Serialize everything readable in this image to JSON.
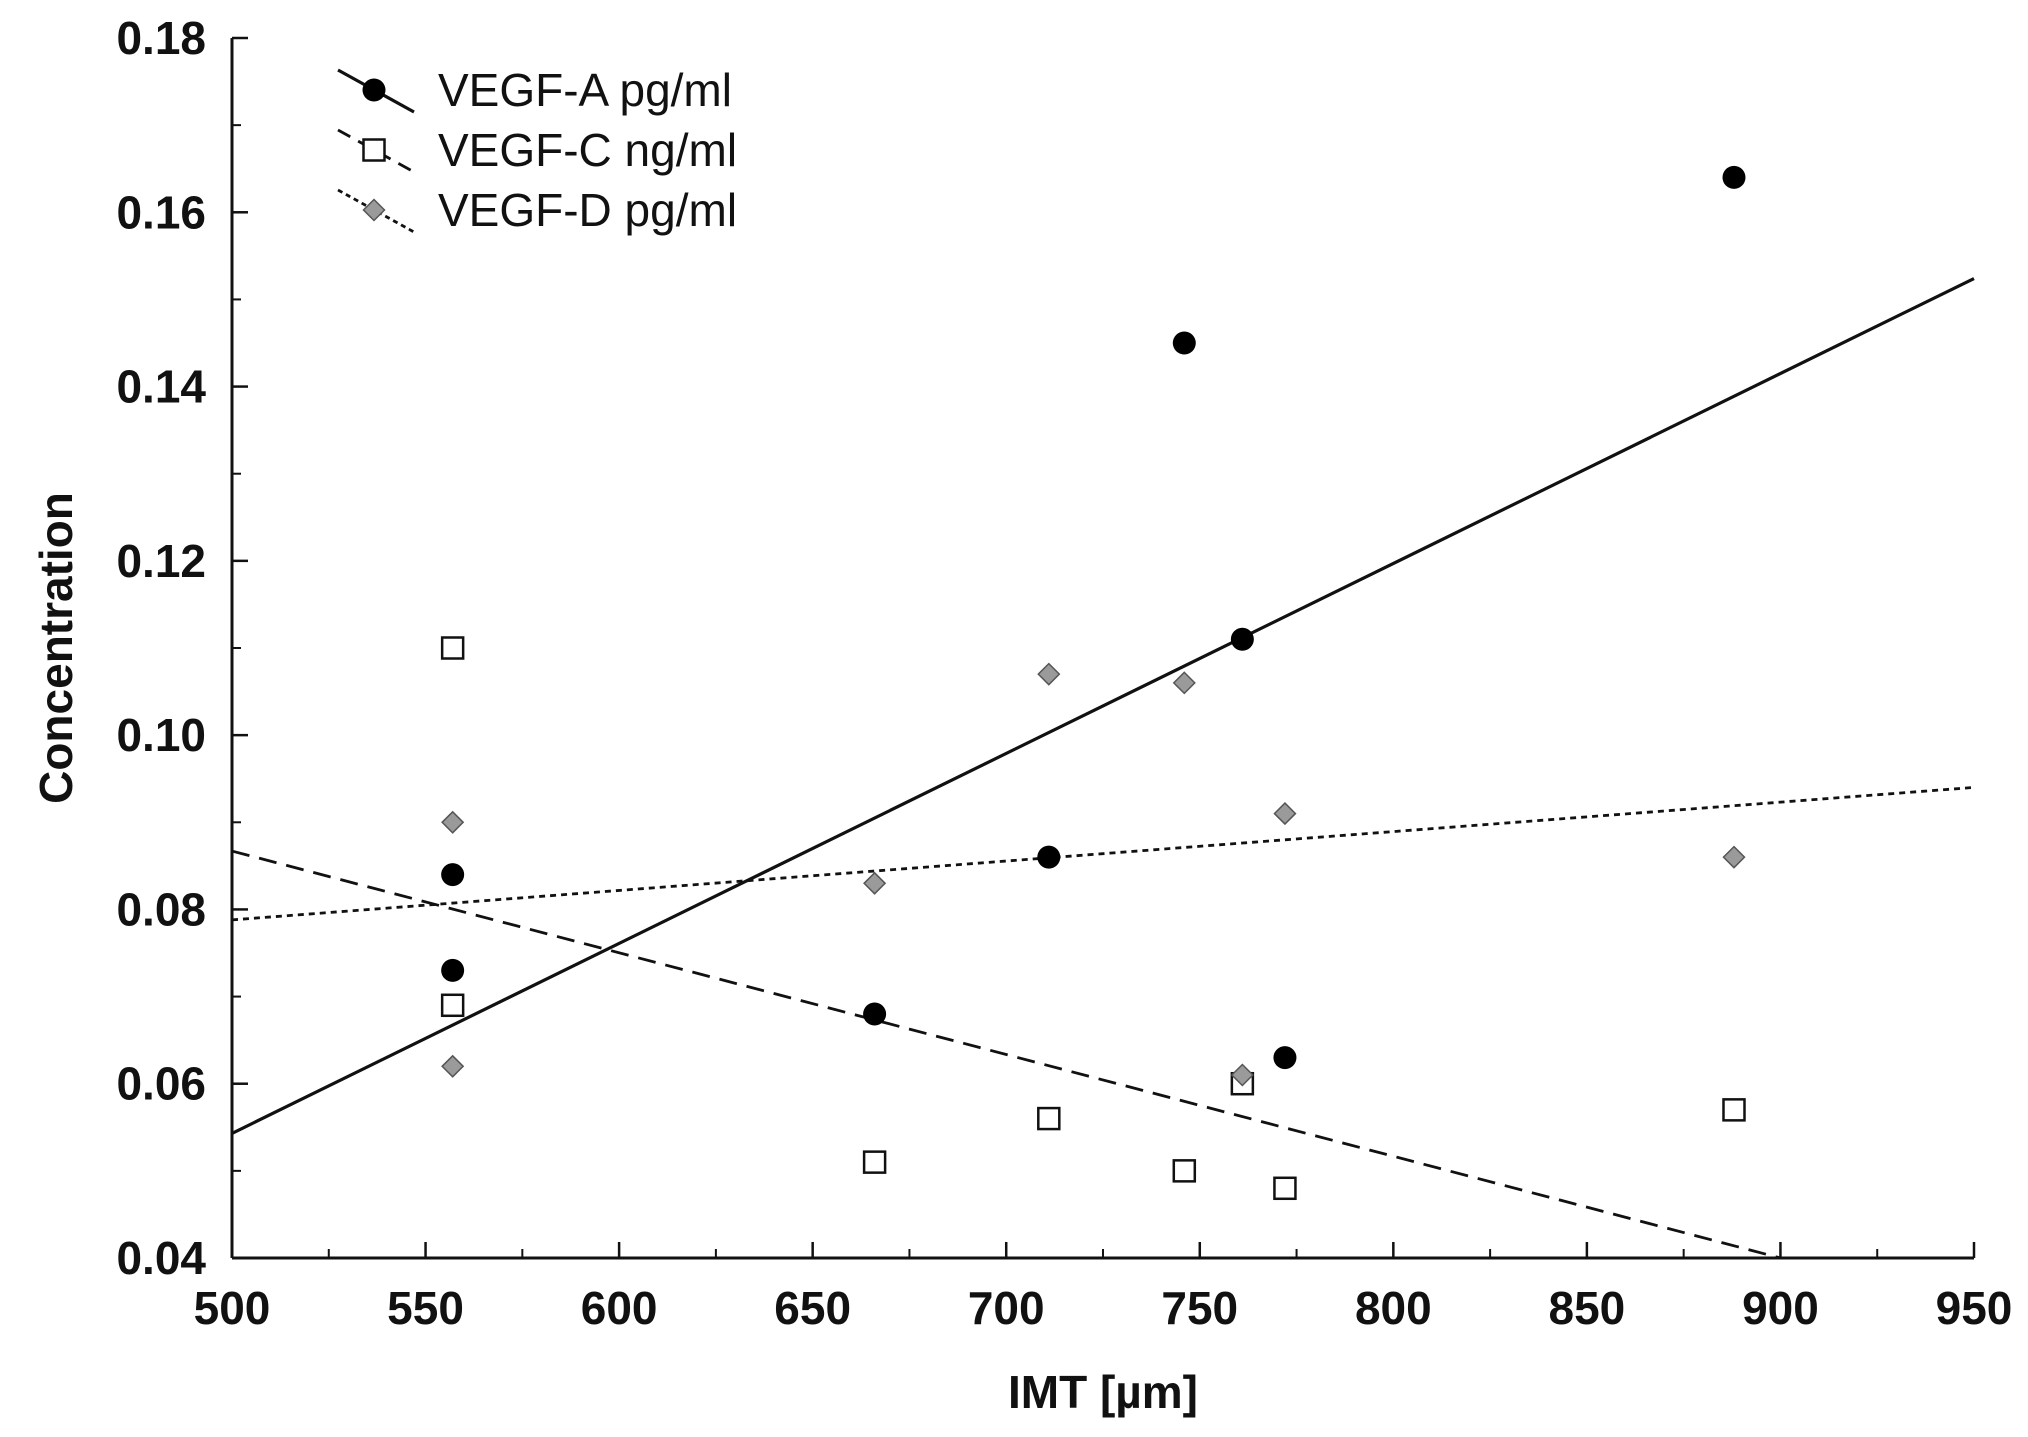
{
  "chart_data": {
    "type": "scatter",
    "title": "",
    "xlabel": "IMT [µm]",
    "ylabel": "Concentration",
    "xlim": [
      500,
      950
    ],
    "ylim": [
      0.04,
      0.18
    ],
    "xticks": [
      500,
      550,
      600,
      650,
      700,
      750,
      800,
      850,
      900,
      950
    ],
    "yticks": [
      0.04,
      0.06,
      0.08,
      0.1,
      0.12,
      0.14,
      0.16,
      0.18
    ],
    "xtick_labels": [
      "500",
      "550",
      "600",
      "650",
      "700",
      "750",
      "800",
      "850",
      "900",
      "950"
    ],
    "ytick_labels": [
      "0.04",
      "0.06",
      "0.08",
      "0.10",
      "0.12",
      "0.14",
      "0.16",
      "0.18"
    ],
    "grid": false,
    "legend_position": "top-left",
    "series": [
      {
        "name": "VEGF-A pg/ml",
        "marker": "filled-circle",
        "line_style": "solid",
        "color": "#000000",
        "x": [
          557,
          557,
          666,
          711,
          746,
          761,
          772,
          888
        ],
        "y": [
          0.084,
          0.073,
          0.068,
          0.086,
          0.145,
          0.111,
          0.063,
          0.164
        ],
        "trend": {
          "x": [
            500,
            950
          ],
          "y": [
            0.0543,
            0.1524
          ]
        }
      },
      {
        "name": "VEGF-C ng/ml",
        "marker": "open-square",
        "line_style": "dashed",
        "color": "#000000",
        "x": [
          557,
          557,
          666,
          711,
          746,
          761,
          772,
          888
        ],
        "y": [
          0.11,
          0.069,
          0.051,
          0.056,
          0.05,
          0.06,
          0.048,
          0.057
        ],
        "trend": {
          "x": [
            500,
            900
          ],
          "y": [
            0.0867,
            0.04
          ]
        }
      },
      {
        "name": "VEGF-D pg/ml",
        "marker": "grey-diamond",
        "line_style": "dotted",
        "color": "#9a9a9a",
        "x": [
          557,
          557,
          666,
          711,
          746,
          761,
          772,
          888
        ],
        "y": [
          0.09,
          0.062,
          0.083,
          0.107,
          0.106,
          0.061,
          0.091,
          0.086
        ],
        "trend": {
          "x": [
            500,
            950
          ],
          "y": [
            0.0788,
            0.094
          ]
        }
      }
    ]
  }
}
